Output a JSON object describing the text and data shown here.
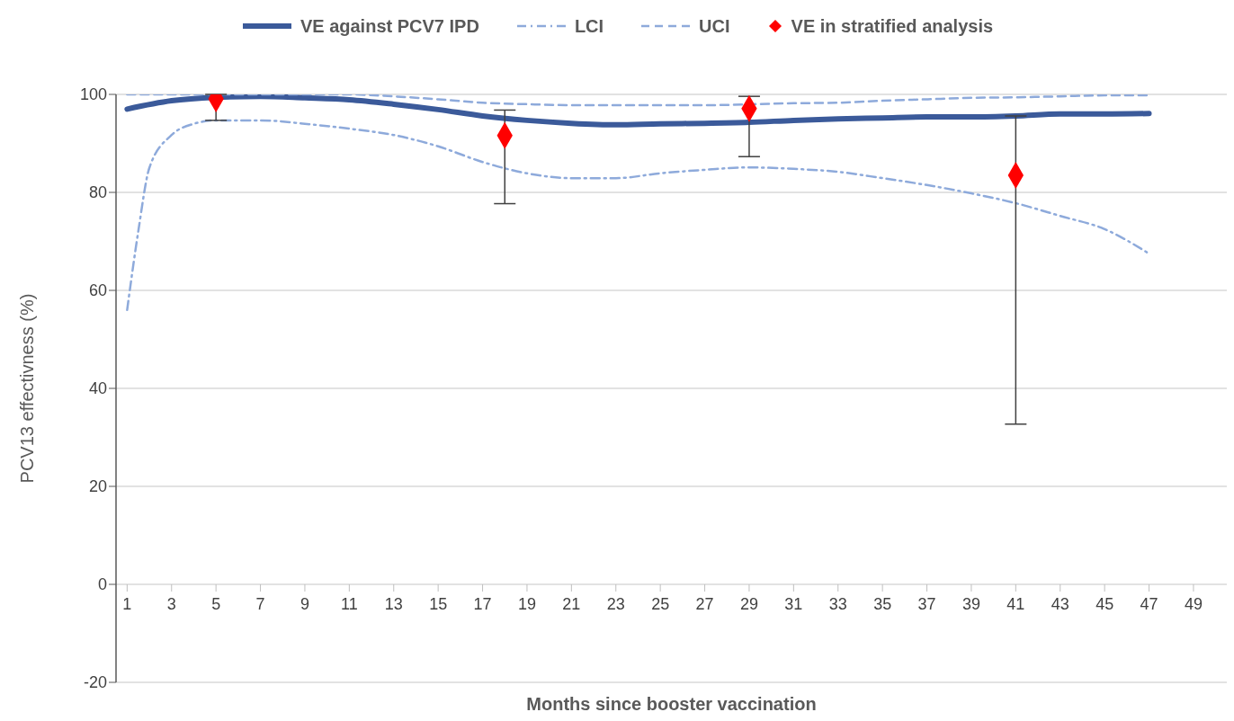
{
  "chart_data": {
    "type": "line",
    "xlabel": "Months since booster vaccination",
    "ylabel": "PCV13 effectivness (%)",
    "xlim": [
      0.5,
      50.5
    ],
    "xticks": [
      1,
      3,
      5,
      7,
      9,
      11,
      13,
      15,
      17,
      19,
      21,
      23,
      25,
      27,
      29,
      31,
      33,
      35,
      37,
      39,
      41,
      43,
      45,
      47,
      49
    ],
    "ylim": [
      -20,
      100
    ],
    "yticks": [
      -20,
      0,
      20,
      40,
      60,
      80,
      100
    ],
    "grid": "y",
    "legend": "top",
    "series": [
      {
        "name": "VE against PCV7 IPD",
        "color": "#3b5a9a",
        "line_style": "solid",
        "marker": "none",
        "x": [
          1,
          3,
          5,
          7,
          9,
          11,
          13,
          15,
          17,
          19,
          21,
          23,
          25,
          27,
          29,
          31,
          33,
          35,
          37,
          39,
          41,
          43,
          45,
          47
        ],
        "values": [
          97,
          98.7,
          99.4,
          99.6,
          99.3,
          98.9,
          98,
          96.9,
          95.6,
          94.7,
          94.1,
          93.8,
          94,
          94.1,
          94.3,
          94.7,
          95,
          95.2,
          95.4,
          95.4,
          95.6,
          96,
          96,
          96.1
        ]
      },
      {
        "name": "LCI",
        "color": "#8eaadb",
        "line_style": "dashdot",
        "marker": "none",
        "x": [
          1,
          1.5,
          2,
          3,
          4,
          5,
          7,
          9,
          11,
          13,
          15,
          17,
          19,
          21,
          23,
          25,
          27,
          29,
          31,
          33,
          35,
          37,
          39,
          41,
          43,
          45,
          47
        ],
        "values": [
          56,
          72,
          85,
          91.7,
          94,
          94.7,
          94.7,
          94,
          93,
          91.7,
          89.4,
          86.2,
          83.9,
          82.9,
          82.9,
          83.9,
          84.6,
          85.1,
          84.8,
          84.2,
          82.9,
          81.5,
          79.8,
          77.8,
          75.2,
          72.5,
          67.5
        ]
      },
      {
        "name": "UCI",
        "color": "#8eaadb",
        "line_style": "dashed",
        "marker": "none",
        "x": [
          1,
          3,
          7,
          9,
          11,
          13,
          15,
          17,
          19,
          21,
          23,
          25,
          27,
          31,
          33,
          35,
          37,
          39,
          41,
          43,
          45,
          47
        ],
        "values": [
          100,
          100,
          100,
          100,
          100,
          99.6,
          99,
          98.3,
          98,
          97.8,
          97.8,
          97.8,
          97.8,
          98.2,
          98.3,
          98.7,
          99,
          99.3,
          99.4,
          99.6,
          99.8,
          99.8
        ]
      },
      {
        "name": "VE in stratified analysis",
        "type": "scatter",
        "color": "#ff0000",
        "marker": "diamond",
        "x": [
          5,
          18,
          29,
          41
        ],
        "values": [
          99.1,
          91.6,
          97.1,
          83.5
        ],
        "errors": [
          [
            94.7,
            100
          ],
          [
            77.7,
            96.8
          ],
          [
            87.3,
            99.6
          ],
          [
            32.7,
            95.6
          ]
        ]
      }
    ]
  }
}
